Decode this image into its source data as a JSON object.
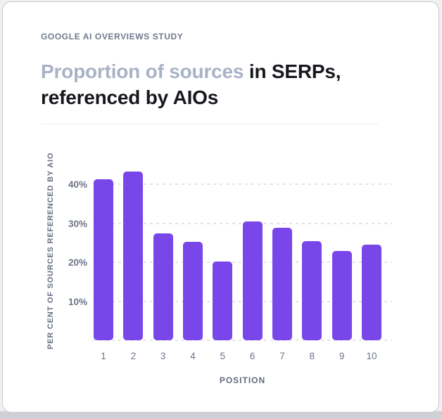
{
  "header": {
    "eyebrow": "GOOGLE AI OVERVIEWS STUDY",
    "title_muted": "Proportion of sources",
    "title_rest": " in SERPs, referenced by AIOs"
  },
  "colors": {
    "bar": "#7946ea",
    "title_muted": "#a9b2c5",
    "title_dark": "#17181d",
    "eyebrow": "#71798c",
    "axis_text": "#6e7689",
    "gridline": "#e2e4e9",
    "card_background": "#ffffff"
  },
  "chart_data": {
    "type": "bar",
    "categories": [
      "1",
      "2",
      "3",
      "4",
      "5",
      "6",
      "7",
      "8",
      "9",
      "10"
    ],
    "values": [
      41.4,
      43.4,
      27.5,
      25.3,
      20.3,
      30.5,
      28.9,
      25.4,
      23.0,
      24.6
    ],
    "title": "Proportion of sources in SERPs, referenced by AIOs",
    "xlabel": "POSITION",
    "ylabel": "PER CENT OF SOURCES REFERENCED BY AIO",
    "ylim": [
      0,
      48
    ],
    "yticks": [
      10,
      20,
      30,
      40
    ],
    "ytick_labels": [
      "10%",
      "20%",
      "30%",
      "40%"
    ],
    "grid": "dashed horizontal gridlines incl. baseline",
    "legend": "none",
    "bar_color": "#7946ea"
  }
}
